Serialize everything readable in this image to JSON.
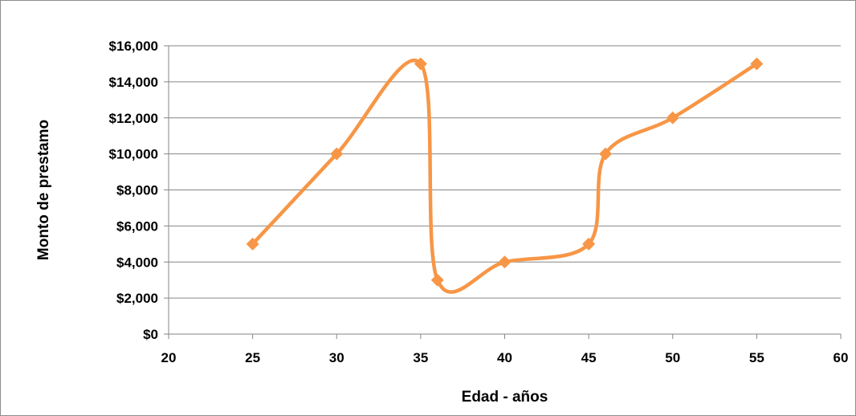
{
  "chart_data": {
    "type": "scatter",
    "title": "",
    "xlabel": "Edad - años",
    "ylabel": "Monto de prestamo",
    "xlim": [
      20,
      60
    ],
    "ylim": [
      0,
      16000
    ],
    "x_ticks": [
      20,
      25,
      30,
      35,
      40,
      45,
      50,
      55,
      60
    ],
    "y_ticks": [
      0,
      2000,
      4000,
      6000,
      8000,
      10000,
      12000,
      14000,
      16000
    ],
    "y_tick_labels": [
      "$0",
      "$2,000",
      "$4,000",
      "$6,000",
      "$8,000",
      "$10,000",
      "$12,000",
      "$14,000",
      "$16,000"
    ],
    "grid": "horizontal",
    "legend": "none",
    "line_style": "smooth",
    "marker": "diamond",
    "series": [
      {
        "color": "#F79646",
        "x": [
          25,
          30,
          35,
          36,
          40,
          45,
          46,
          50,
          55
        ],
        "y": [
          5000,
          10000,
          15000,
          3000,
          4000,
          5000,
          10000,
          12000,
          15000
        ]
      }
    ]
  }
}
